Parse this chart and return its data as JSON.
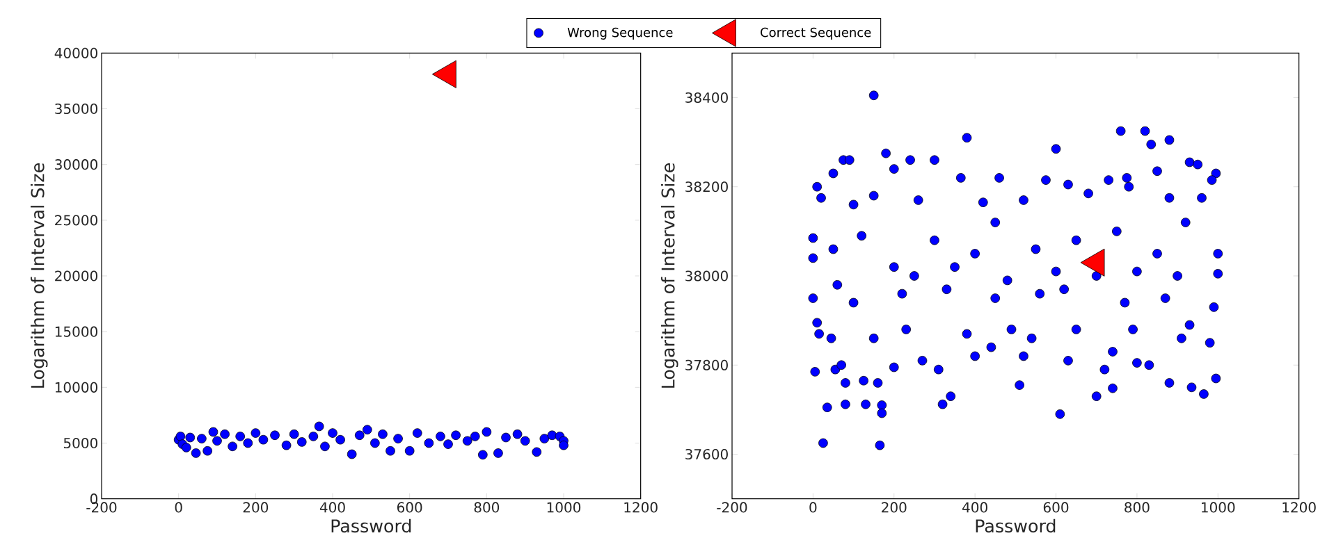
{
  "chart_data": [
    {
      "type": "scatter",
      "xlabel": "Password",
      "ylabel": "Logarithm of Interval Size",
      "xlim": [
        -200,
        1200
      ],
      "ylim": [
        0,
        40000
      ],
      "xticks": [
        -200,
        0,
        200,
        400,
        600,
        800,
        1000,
        1200
      ],
      "yticks": [
        0,
        5000,
        10000,
        15000,
        20000,
        25000,
        30000,
        35000,
        40000
      ],
      "legend": "top",
      "series": [
        {
          "name": "Wrong Sequence",
          "color": "#0000ff",
          "marker": "circle",
          "x": [
            0,
            5,
            10,
            20,
            30,
            45,
            60,
            75,
            90,
            100,
            120,
            140,
            160,
            180,
            200,
            220,
            250,
            280,
            300,
            320,
            350,
            365,
            380,
            400,
            420,
            450,
            470,
            490,
            510,
            530,
            550,
            570,
            600,
            620,
            650,
            680,
            700,
            720,
            750,
            770,
            790,
            800,
            830,
            850,
            880,
            900,
            930,
            950,
            970,
            990,
            1000,
            1000
          ],
          "values": [
            5300,
            5600,
            4900,
            4600,
            5500,
            4100,
            5400,
            4300,
            6000,
            5200,
            5800,
            4700,
            5600,
            5000,
            5900,
            5300,
            5700,
            4800,
            5800,
            5100,
            5600,
            6500,
            4700,
            5900,
            5300,
            4000,
            5700,
            6200,
            5000,
            5800,
            4300,
            5400,
            4300,
            5900,
            5000,
            5600,
            4900,
            5700,
            5200,
            5600,
            3950,
            6000,
            4100,
            5500,
            5800,
            5200,
            4200,
            5400,
            5700,
            5600,
            5200,
            4800
          ]
        },
        {
          "name": "Correct Sequence",
          "color": "#ff0000",
          "marker": "triangle",
          "x": [
            700
          ],
          "values": [
            38100
          ]
        }
      ]
    },
    {
      "type": "scatter",
      "xlabel": "Password",
      "ylabel": "Logarithm of Interval Size",
      "xlim": [
        -200,
        1200
      ],
      "ylim": [
        37500,
        38500
      ],
      "xticks": [
        -200,
        0,
        200,
        400,
        600,
        800,
        1000,
        1200
      ],
      "yticks": [
        37600,
        37800,
        38000,
        38200,
        38400
      ],
      "series": [
        {
          "color": "#0000ff",
          "marker": "circle",
          "x": [
            150,
            380,
            600,
            760,
            820,
            835,
            880,
            25,
            165,
            610,
            35,
            80,
            130,
            170,
            170,
            320,
            340,
            700,
            740,
            965,
            935,
            5,
            80,
            160,
            510,
            880,
            995,
            125,
            200,
            310,
            720,
            800,
            55,
            70,
            45,
            15,
            10,
            0,
            0,
            0,
            10,
            20,
            50,
            75,
            90,
            180,
            240,
            300,
            200,
            365,
            460,
            575,
            630,
            730,
            775,
            850,
            930,
            950,
            995,
            985,
            100,
            150,
            260,
            420,
            520,
            680,
            780,
            880,
            960,
            50,
            120,
            200,
            300,
            400,
            450,
            550,
            650,
            750,
            850,
            920,
            1000,
            100,
            220,
            330,
            450,
            560,
            620,
            770,
            870,
            990,
            60,
            250,
            350,
            480,
            600,
            700,
            800,
            900,
            1000,
            150,
            230,
            380,
            490,
            540,
            650,
            790,
            930,
            980,
            270,
            400,
            520,
            630,
            740,
            830,
            910,
            440
          ],
          "values": [
            38405,
            38310,
            38285,
            38325,
            38325,
            38295,
            38305,
            37625,
            37620,
            37690,
            37705,
            37712,
            37712,
            37710,
            37692,
            37712,
            37730,
            37730,
            37748,
            37735,
            37750,
            37785,
            37760,
            37760,
            37755,
            37760,
            37770,
            37765,
            37795,
            37790,
            37790,
            37805,
            37790,
            37800,
            37860,
            37870,
            37895,
            37950,
            38040,
            38085,
            38200,
            38175,
            38230,
            38260,
            38260,
            38275,
            38260,
            38260,
            38240,
            38220,
            38220,
            38215,
            38205,
            38215,
            38220,
            38235,
            38255,
            38250,
            38230,
            38215,
            38160,
            38180,
            38170,
            38165,
            38170,
            38185,
            38200,
            38175,
            38175,
            38060,
            38090,
            38020,
            38080,
            38050,
            38120,
            38060,
            38080,
            38100,
            38050,
            38120,
            38050,
            37940,
            37960,
            37970,
            37950,
            37960,
            37970,
            37940,
            37950,
            37930,
            37980,
            38000,
            38020,
            37990,
            38010,
            38000,
            38010,
            38000,
            38005,
            37860,
            37880,
            37870,
            37880,
            37860,
            37880,
            37880,
            37890,
            37850,
            37810,
            37820,
            37820,
            37810,
            37830,
            37800,
            37860,
            37840
          ]
        },
        {
          "color": "#ff0000",
          "marker": "triangle",
          "x": [
            700
          ],
          "values": [
            38030
          ]
        }
      ]
    }
  ]
}
